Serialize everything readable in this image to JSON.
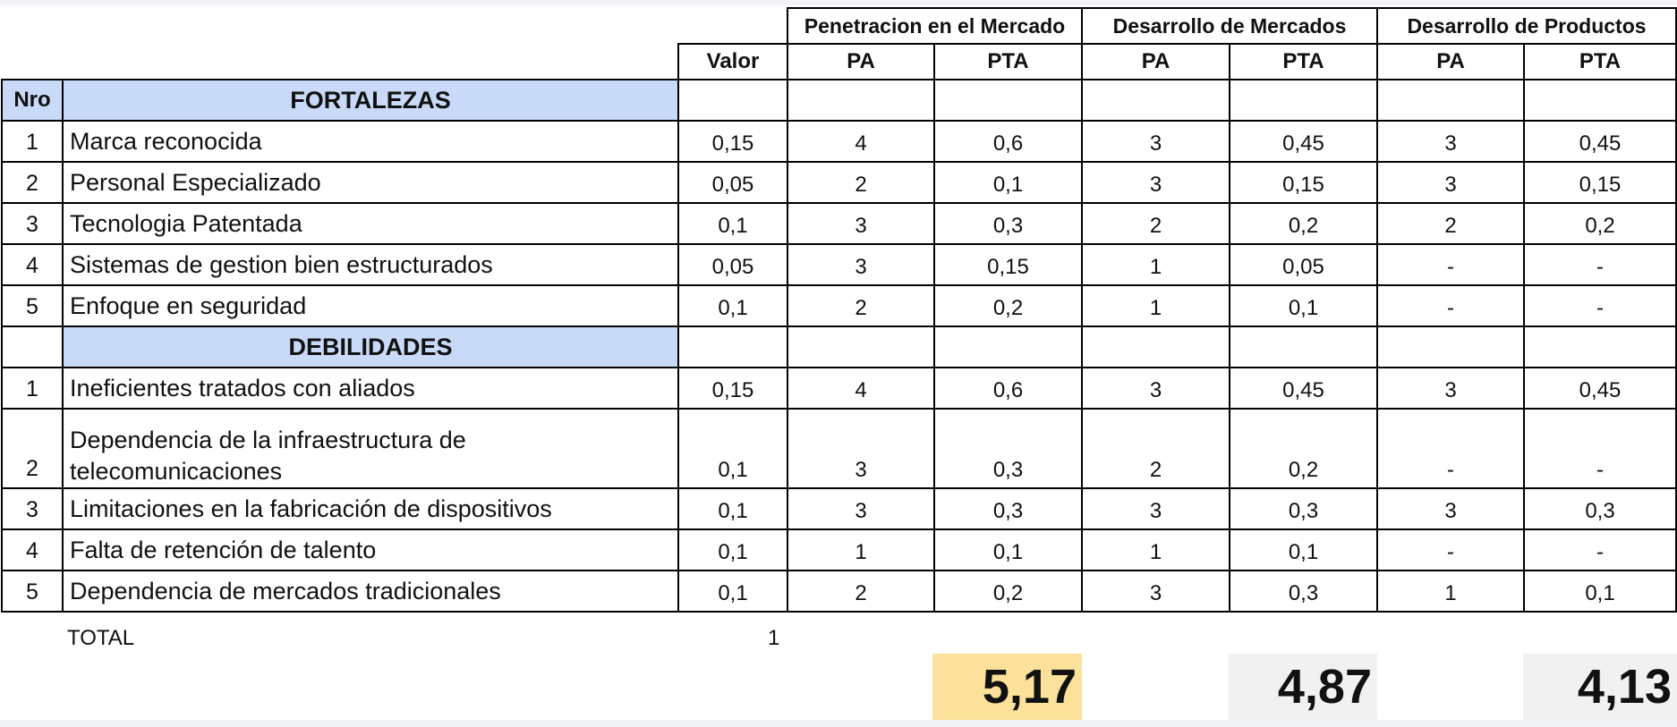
{
  "header": {
    "strategies": [
      "Penetracion en el Mercado",
      "Desarrollo de Mercados",
      "Desarrollo de Productos"
    ],
    "valor_label": "Valor",
    "pa_label": "PA",
    "pta_label": "PTA",
    "nro_label": "Nro"
  },
  "sections": {
    "fortalezas": "FORTALEZAS",
    "debilidades": "DEBILIDADES"
  },
  "fortalezas": [
    {
      "nro": "1",
      "factor": "Marca reconocida",
      "valor": "0,15",
      "v": [
        "4",
        "0,6",
        "3",
        "0,45",
        "3",
        "0,45"
      ]
    },
    {
      "nro": "2",
      "factor": "Personal Especializado",
      "valor": "0,05",
      "v": [
        "2",
        "0,1",
        "3",
        "0,15",
        "3",
        "0,15"
      ]
    },
    {
      "nro": "3",
      "factor": "Tecnologia Patentada",
      "valor": "0,1",
      "v": [
        "3",
        "0,3",
        "2",
        "0,2",
        "2",
        "0,2"
      ]
    },
    {
      "nro": "4",
      "factor": "Sistemas de gestion bien estructurados",
      "valor": "0,05",
      "v": [
        "3",
        "0,15",
        "1",
        "0,05",
        "-",
        "-"
      ]
    },
    {
      "nro": "5",
      "factor": "Enfoque en seguridad",
      "valor": "0,1",
      "v": [
        "2",
        "0,2",
        "1",
        "0,1",
        "-",
        "-"
      ]
    }
  ],
  "debilidades": [
    {
      "nro": "1",
      "factor": "Ineficientes tratados con aliados",
      "valor": "0,15",
      "v": [
        "4",
        "0,6",
        "3",
        "0,45",
        "3",
        "0,45"
      ]
    },
    {
      "nro": "2",
      "factor": "Dependencia de la infraestructura de telecomunicaciones",
      "valor": "0,1",
      "v": [
        "3",
        "0,3",
        "2",
        "0,2",
        "-",
        "-"
      ]
    },
    {
      "nro": "3",
      "factor": "Limitaciones en la fabricación de dispositivos",
      "valor": "0,1",
      "v": [
        "3",
        "0,3",
        "3",
        "0,3",
        "3",
        "0,3"
      ]
    },
    {
      "nro": "4",
      "factor": "Falta de retención de talento",
      "valor": "0,1",
      "v": [
        "1",
        "0,1",
        "1",
        "0,1",
        "-",
        "-"
      ]
    },
    {
      "nro": "5",
      "factor": "Dependencia de mercados tradicionales",
      "valor": "0,1",
      "v": [
        "2",
        "0,2",
        "3",
        "0,3",
        "1",
        "0,1"
      ]
    }
  ],
  "total": {
    "label": "TOTAL",
    "value": "1"
  },
  "scores": [
    "5,17",
    "4,87",
    "4,13"
  ],
  "colors": {
    "section_header_bg": "#c9daf8",
    "best_score_bg": "#fce19a",
    "score_bg": "#f1f1f1"
  }
}
